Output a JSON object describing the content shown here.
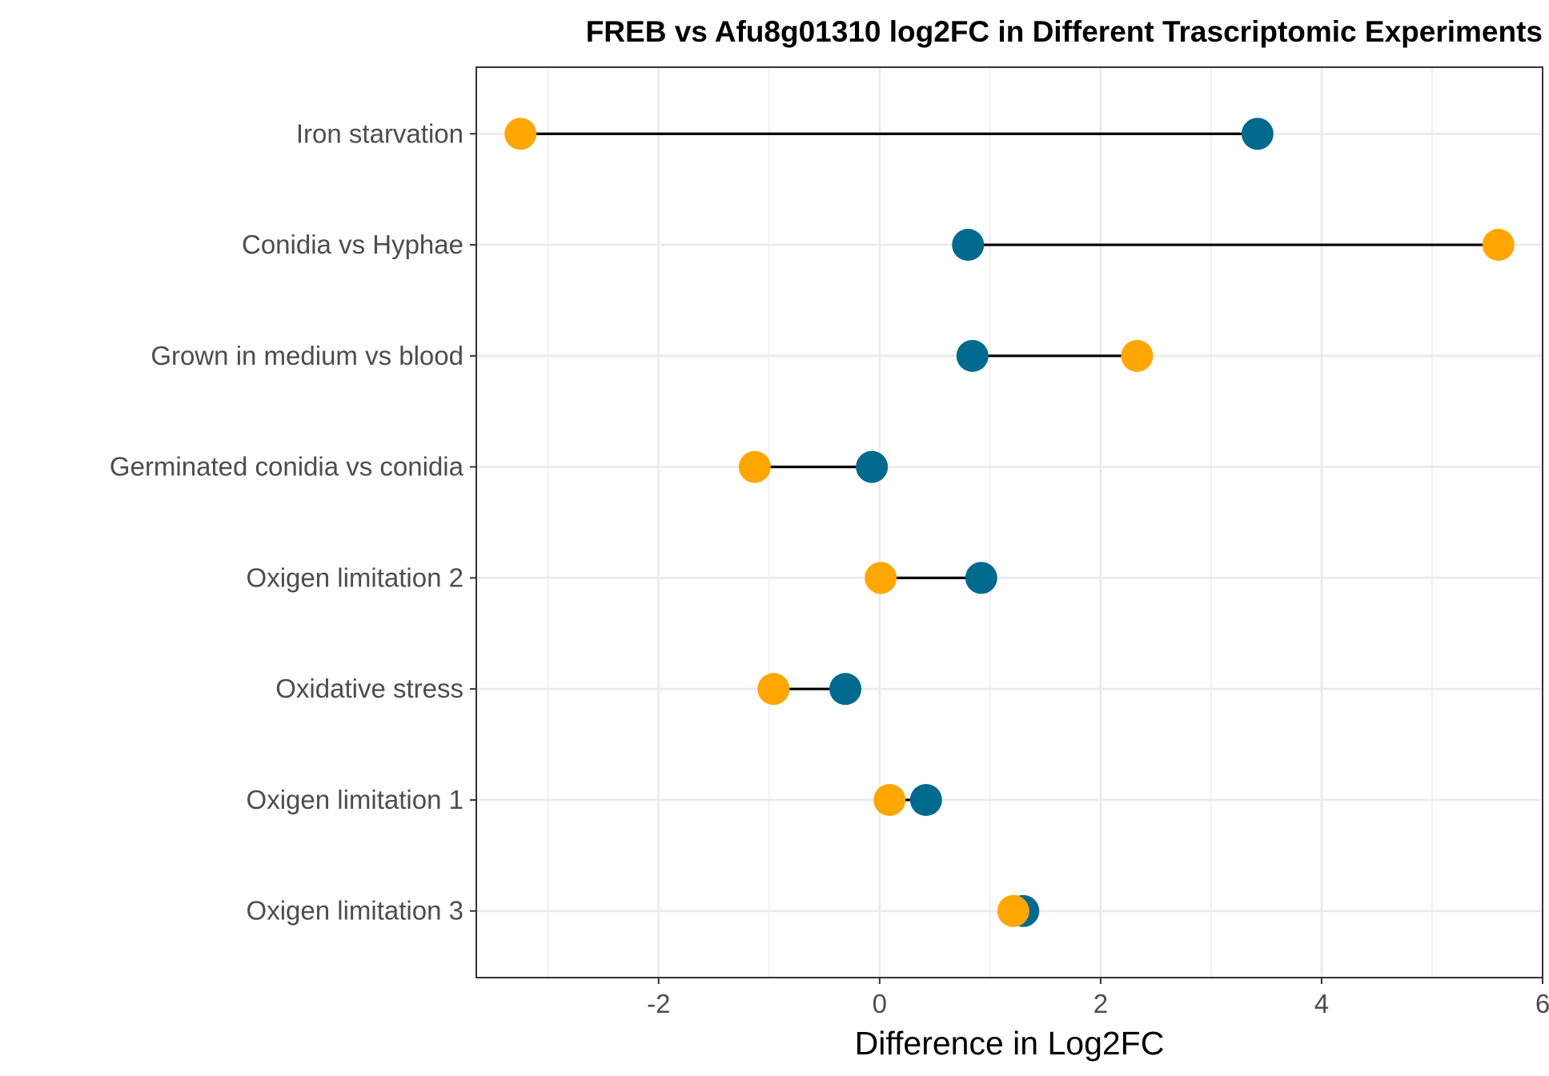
{
  "chart_data": {
    "type": "dumbbell",
    "title": "FREB vs Afu8g01310 log2FC in Different Trascriptomic Experiments",
    "xlabel": "Difference in Log2FC",
    "ylabel": "",
    "xlim": [
      -3.65,
      6.0
    ],
    "x_ticks": [
      -2,
      0,
      2,
      4,
      6
    ],
    "x_tick_labels": [
      "-2",
      "0",
      "2",
      "4",
      "6"
    ],
    "grid": true,
    "categories": [
      "Iron starvation",
      "Conidia vs Hyphae",
      "Grown in medium vs blood",
      "Germinated conidia vs conidia",
      "Oxigen limitation 2",
      "Oxidative stress",
      "Oxigen limitation 1",
      "Oxigen limitation 3"
    ],
    "series": [
      {
        "color": "#006a8e",
        "values": [
          3.42,
          0.8,
          0.84,
          -0.07,
          0.92,
          -0.31,
          0.42,
          1.3
        ]
      },
      {
        "color": "#ffa600",
        "values": [
          -3.25,
          5.6,
          2.33,
          -1.13,
          0.01,
          -0.96,
          0.09,
          1.21
        ]
      }
    ],
    "connector_color": "#000000"
  }
}
